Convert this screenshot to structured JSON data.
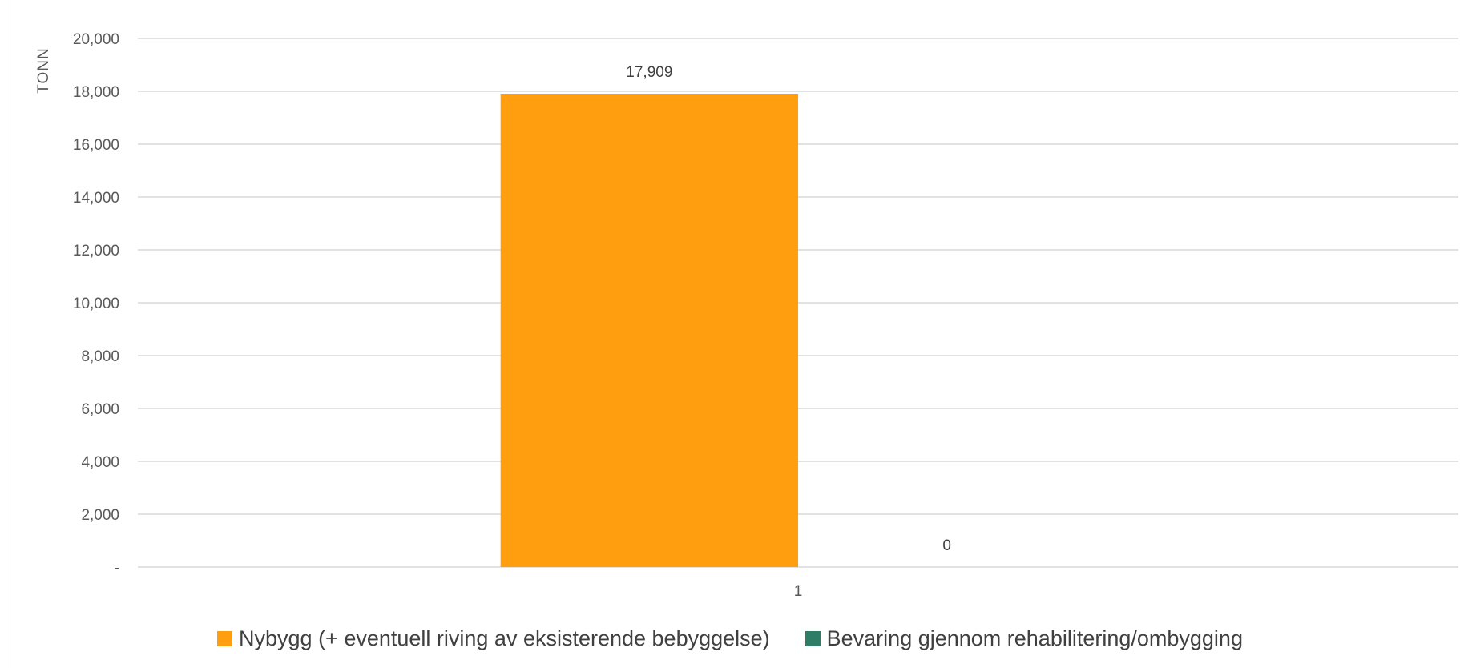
{
  "chart_data": {
    "type": "bar",
    "title": "",
    "ylabel": "TONN",
    "xlabel": "",
    "categories": [
      "1"
    ],
    "series": [
      {
        "name": "Nybygg (+ eventuell riving av eksisterende bebyggelse)",
        "values": [
          17909
        ],
        "labels": [
          "17,909"
        ],
        "color": "#ff9e0f"
      },
      {
        "name": "Bevaring gjennom rehabilitering/ombygging",
        "values": [
          0
        ],
        "labels": [
          "0"
        ],
        "color": "#2e7d67"
      }
    ],
    "ylim": [
      0,
      20000
    ],
    "yticks": [
      {
        "value": 0,
        "label": "-"
      },
      {
        "value": 2000,
        "label": "2,000"
      },
      {
        "value": 4000,
        "label": "4,000"
      },
      {
        "value": 6000,
        "label": "6,000"
      },
      {
        "value": 8000,
        "label": "8,000"
      },
      {
        "value": 10000,
        "label": "10,000"
      },
      {
        "value": 12000,
        "label": "12,000"
      },
      {
        "value": 14000,
        "label": "14,000"
      },
      {
        "value": 16000,
        "label": "16,000"
      },
      {
        "value": 18000,
        "label": "18,000"
      },
      {
        "value": 20000,
        "label": "20,000"
      }
    ],
    "grid": true,
    "legend_position": "bottom"
  }
}
